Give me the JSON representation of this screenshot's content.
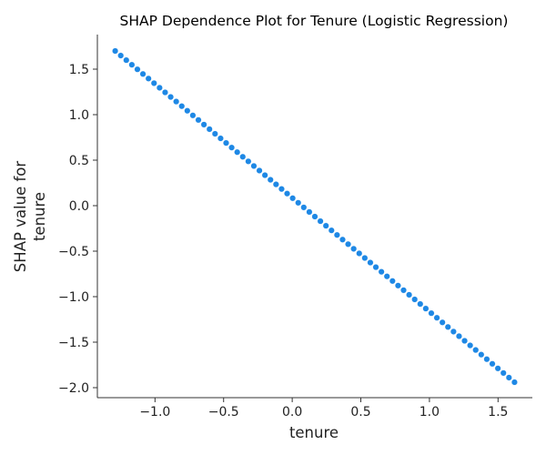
{
  "chart_data": {
    "type": "scatter",
    "title": "SHAP Dependence Plot for Tenure (Logistic Regression)",
    "xlabel": "tenure",
    "ylabel_lines": [
      "SHAP value for",
      "tenure"
    ],
    "xlim": [
      -1.42,
      1.75
    ],
    "ylim": [
      -2.11,
      1.88
    ],
    "xticks": [
      -1.0,
      -0.5,
      0.0,
      0.5,
      1.0,
      1.5
    ],
    "xtick_labels": [
      "−1.0",
      "−0.5",
      "0.0",
      "0.5",
      "1.0",
      "1.5"
    ],
    "yticks": [
      1.5,
      1.0,
      0.5,
      0.0,
      -0.5,
      -1.0,
      -1.5,
      -2.0
    ],
    "ytick_labels": [
      "1.5",
      "1.0",
      "0.5",
      "0.0",
      "−0.5",
      "−1.0",
      "−1.5",
      "−2.0"
    ],
    "grid": false,
    "legend": "none",
    "marker_color": "#1e88e5",
    "x_range": [
      -1.29,
      1.62
    ],
    "y_range": [
      1.7,
      -1.94
    ],
    "point_count": 73
  }
}
